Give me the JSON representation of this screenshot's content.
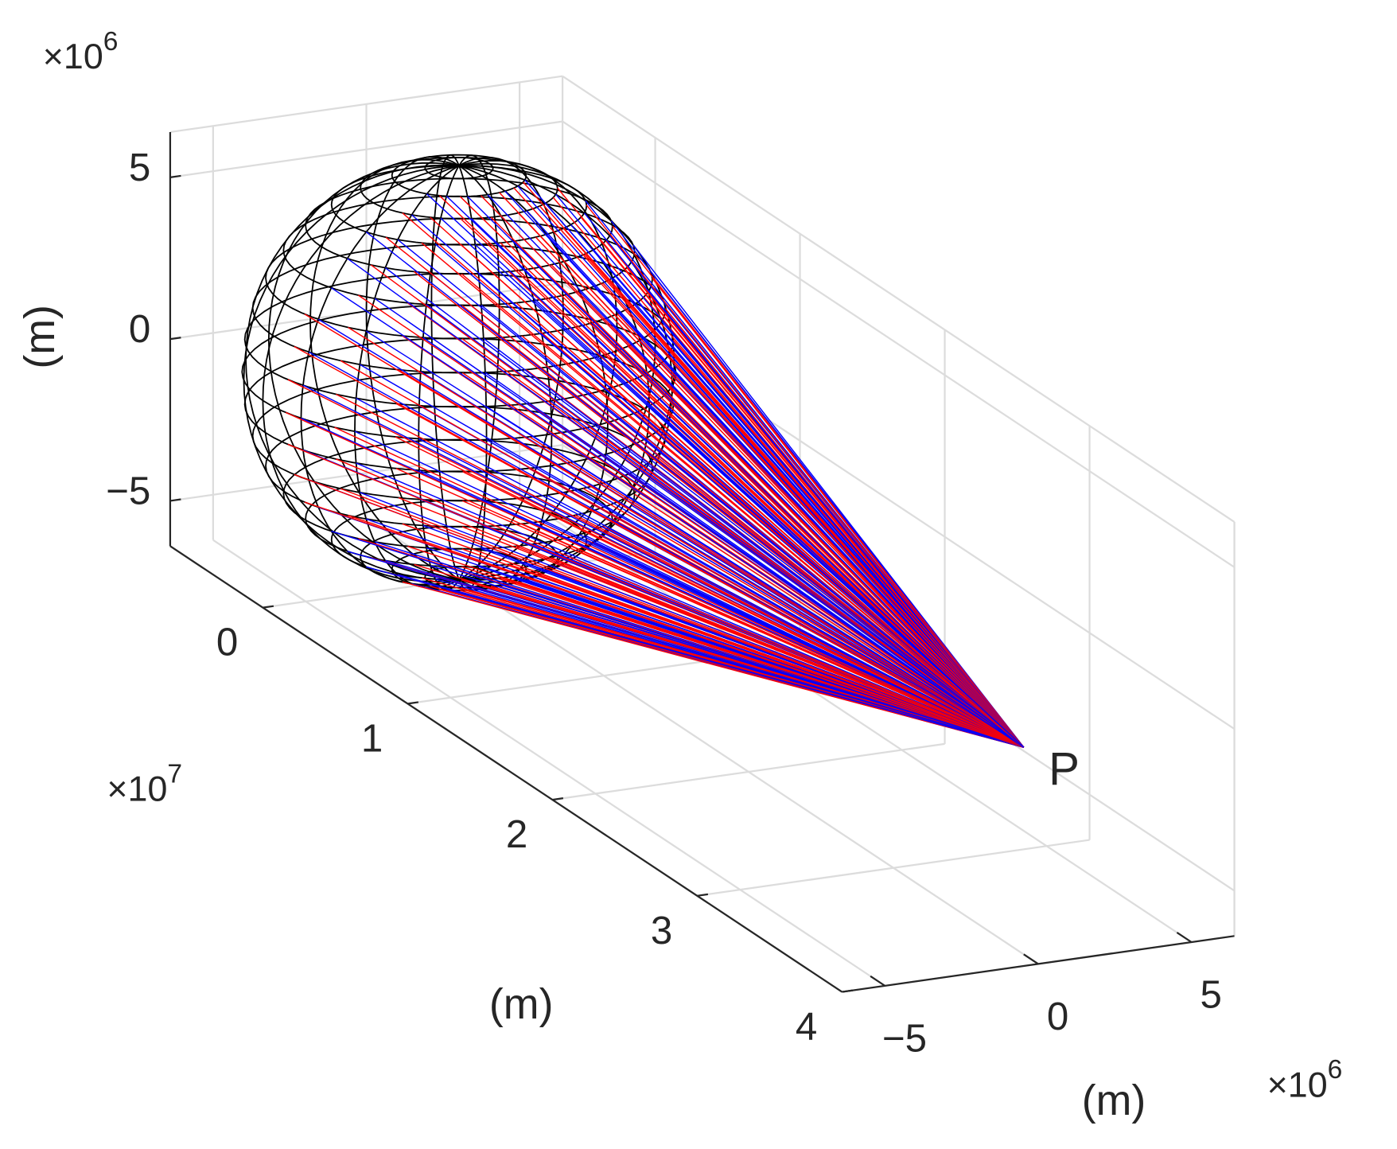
{
  "chart_data": {
    "type": "sphere-rays-3d",
    "xlabel": "(m)",
    "ylabel": "(m)",
    "zlabel": "(m)",
    "x_multiplier": {
      "base": "×10",
      "exponent": "6"
    },
    "y_multiplier": {
      "base": "×10",
      "exponent": "7"
    },
    "z_multiplier": {
      "base": "×10",
      "exponent": "6"
    },
    "xlim": [
      -6.4,
      6.4
    ],
    "ylim": [
      -0.64,
      4
    ],
    "zlim": [
      -6.4,
      6.4
    ],
    "xticks": [
      {
        "value": -5,
        "label": "−5"
      },
      0,
      5
    ],
    "yticks": [
      0,
      1,
      2,
      3,
      4
    ],
    "zticks": [
      {
        "value": -5,
        "label": "−5"
      },
      0,
      5
    ],
    "grid": true,
    "sphere": {
      "radius": 6400000,
      "meridians": 20,
      "parallels": 20,
      "color": "#000000"
    },
    "point": {
      "label": "P",
      "x": 0,
      "y": 39000000,
      "z": 0
    },
    "ray_colors": [
      "#0000ff",
      "#ff0000"
    ]
  }
}
